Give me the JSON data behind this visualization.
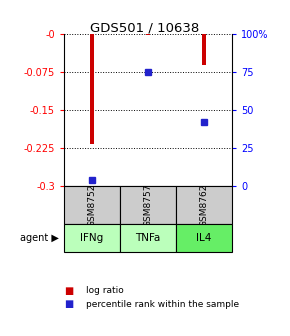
{
  "title": "GDS501 / 10638",
  "samples": [
    "GSM8752",
    "GSM8757",
    "GSM8762"
  ],
  "agents": [
    "IFNg",
    "TNFa",
    "IL4"
  ],
  "log_ratios": [
    -0.218,
    -0.003,
    -0.062
  ],
  "percentile_ranks": [
    4.0,
    75.0,
    42.0
  ],
  "ylim_left": [
    -0.3,
    0.0
  ],
  "ylim_right": [
    0,
    100
  ],
  "yticks_left": [
    0.0,
    -0.075,
    -0.15,
    -0.225,
    -0.3
  ],
  "ytick_labels_left": [
    "-0",
    "-0.075",
    "-0.15",
    "-0.225",
    "-0.3"
  ],
  "yticks_right": [
    0,
    25,
    50,
    75,
    100
  ],
  "ytick_labels_right": [
    "0",
    "25",
    "50",
    "75",
    "100%"
  ],
  "bar_color": "#cc0000",
  "percentile_color": "#2222cc",
  "agent_colors": [
    "#bbffbb",
    "#bbffbb",
    "#66ee66"
  ],
  "sample_box_color": "#cccccc",
  "legend_log_ratio": "log ratio",
  "legend_percentile": "percentile rank within the sample",
  "bar_width": 0.08,
  "agent_label": "agent"
}
